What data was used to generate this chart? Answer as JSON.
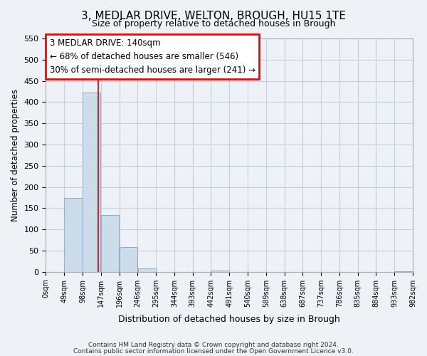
{
  "title": "3, MEDLAR DRIVE, WELTON, BROUGH, HU15 1TE",
  "subtitle": "Size of property relative to detached houses in Brough",
  "xlabel": "Distribution of detached houses by size in Brough",
  "ylabel": "Number of detached properties",
  "footer_lines": [
    "Contains HM Land Registry data © Crown copyright and database right 2024.",
    "Contains public sector information licensed under the Open Government Licence v3.0."
  ],
  "annotation_lines": [
    "3 MEDLAR DRIVE: 140sqm",
    "← 68% of detached houses are smaller (546)",
    "30% of semi-detached houses are larger (241) →"
  ],
  "bin_edges": [
    0,
    49,
    98,
    147,
    196,
    245,
    294,
    343,
    392,
    441,
    490,
    539,
    588,
    637,
    686,
    735,
    784,
    833,
    882,
    931,
    980
  ],
  "bin_labels": [
    "0sqm",
    "49sqm",
    "98sqm",
    "147sqm",
    "196sqm",
    "246sqm",
    "295sqm",
    "344sqm",
    "393sqm",
    "442sqm",
    "491sqm",
    "540sqm",
    "589sqm",
    "638sqm",
    "687sqm",
    "737sqm",
    "786sqm",
    "835sqm",
    "884sqm",
    "933sqm",
    "982sqm"
  ],
  "bar_heights": [
    0,
    174,
    422,
    134,
    58,
    8,
    0,
    0,
    0,
    3,
    0,
    0,
    0,
    0,
    0,
    0,
    0,
    0,
    0,
    2
  ],
  "bar_color": "#ccdce8",
  "bar_edge_color": "#88aacc",
  "vline_x": 140,
  "vline_color": "#cc0000",
  "ylim": [
    0,
    550
  ],
  "yticks": [
    0,
    50,
    100,
    150,
    200,
    250,
    300,
    350,
    400,
    450,
    500,
    550
  ],
  "bg_color": "#eef2f7",
  "plot_bg_color": "#eef2f7",
  "grid_color": "#c0cfe0"
}
